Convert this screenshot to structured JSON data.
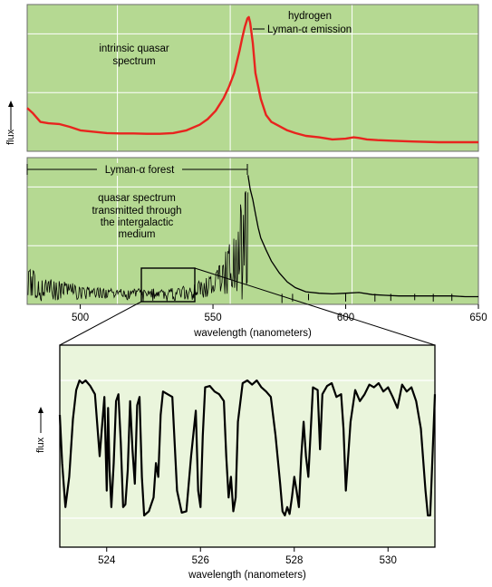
{
  "ylabel": "flux",
  "chart_data": [
    {
      "type": "line",
      "annotations": [
        "intrinsic quasar spectrum",
        "hydrogen",
        "Lyman-α emission"
      ],
      "series": [
        {
          "color": "#e8241e",
          "x": [
            480,
            482,
            485,
            488,
            492,
            496,
            500,
            505,
            510,
            515,
            520,
            525,
            530,
            535,
            540,
            545,
            548,
            551,
            554,
            556,
            558,
            559,
            560,
            561,
            562,
            563,
            563.5,
            564,
            565,
            566,
            568,
            570,
            572,
            574,
            576,
            578,
            581,
            585,
            590,
            595,
            600,
            603,
            605,
            608,
            612,
            618,
            625,
            635,
            645,
            650
          ],
          "y": [
            0.62,
            0.55,
            0.42,
            0.4,
            0.39,
            0.35,
            0.3,
            0.28,
            0.26,
            0.255,
            0.255,
            0.25,
            0.25,
            0.26,
            0.3,
            0.38,
            0.46,
            0.58,
            0.76,
            0.92,
            1.12,
            1.28,
            1.44,
            1.62,
            1.78,
            1.9,
            1.92,
            1.84,
            1.55,
            1.12,
            0.75,
            0.52,
            0.42,
            0.38,
            0.34,
            0.3,
            0.26,
            0.22,
            0.2,
            0.17,
            0.18,
            0.2,
            0.19,
            0.17,
            0.16,
            0.15,
            0.14,
            0.13,
            0.13,
            0.13
          ]
        }
      ],
      "xlim": [
        480,
        650
      ],
      "ylim": [
        0,
        2.1
      ],
      "grid": true
    },
    {
      "type": "line",
      "annotations": [
        "Lyman-α forest",
        "quasar spectrum transmitted through the intergalactic medium"
      ],
      "xlabel": "wavelength (nanometers)",
      "x_ticks": [
        500,
        550,
        600,
        650
      ],
      "series": [
        {
          "color": "#000000",
          "x": [
            563.2,
            564,
            565,
            566,
            567,
            568,
            570,
            572,
            575,
            578,
            581,
            585,
            590,
            595,
            600,
            605,
            610,
            615,
            620,
            625,
            630,
            635,
            640,
            645,
            650
          ],
          "y": [
            1.85,
            1.65,
            1.5,
            1.3,
            1.1,
            0.95,
            0.78,
            0.62,
            0.45,
            0.32,
            0.24,
            0.18,
            0.16,
            0.15,
            0.16,
            0.17,
            0.14,
            0.13,
            0.12,
            0.12,
            0.12,
            0.12,
            0.12,
            0.11,
            0.11
          ]
        }
      ],
      "xlim": [
        480,
        650
      ],
      "ylim": [
        0,
        2.1
      ],
      "grid": true
    },
    {
      "type": "line",
      "xlabel": "wavelength (nanometers)",
      "x_ticks": [
        524,
        526,
        528,
        530
      ],
      "xlim": [
        523,
        531
      ],
      "ylim": [
        0,
        1.1
      ],
      "series": [
        {
          "color": "#000000",
          "x": [
            523,
            523.05,
            523.12,
            523.2,
            523.28,
            523.35,
            523.42,
            523.48,
            523.55,
            523.65,
            523.75,
            523.85,
            523.95,
            524.0,
            524.03,
            524.06,
            524.1,
            524.15,
            524.2,
            524.25,
            524.3,
            524.35,
            524.4,
            524.45,
            524.5,
            524.55,
            524.6,
            524.65,
            524.7,
            524.75,
            524.8,
            524.9,
            525.0,
            525.05,
            525.1,
            525.15,
            525.2,
            525.3,
            525.4,
            525.5,
            525.6,
            525.7,
            525.8,
            525.9,
            525.95,
            526.0,
            526.05,
            526.1,
            526.2,
            526.3,
            526.4,
            526.5,
            526.55,
            526.6,
            526.65,
            526.7,
            526.75,
            526.8,
            526.9,
            527.0,
            527.1,
            527.2,
            527.3,
            527.4,
            527.5,
            527.6,
            527.7,
            527.75,
            527.8,
            527.85,
            527.9,
            527.95,
            528.0,
            528.05,
            528.1,
            528.15,
            528.2,
            528.25,
            528.3,
            528.4,
            528.5,
            528.55,
            528.6,
            528.7,
            528.8,
            528.9,
            529.0,
            529.05,
            529.1,
            529.2,
            529.3,
            529.4,
            529.5,
            529.6,
            529.7,
            529.8,
            529.9,
            530.0,
            530.1,
            530.2,
            530.3,
            530.4,
            530.5,
            530.6,
            530.7,
            530.8,
            530.85,
            530.9,
            531.0
          ],
          "y": [
            0.75,
            0.4,
            0.08,
            0.3,
            0.72,
            0.93,
            1.0,
            0.98,
            1.0,
            0.96,
            0.9,
            0.45,
            0.88,
            0.2,
            0.8,
            0.35,
            0.08,
            0.4,
            0.85,
            0.9,
            0.55,
            0.08,
            0.1,
            0.35,
            0.85,
            0.5,
            0.25,
            0.82,
            0.88,
            0.3,
            0.02,
            0.05,
            0.15,
            0.4,
            0.3,
            0.75,
            0.92,
            0.9,
            0.88,
            0.2,
            0.04,
            0.05,
            0.45,
            0.78,
            0.2,
            0.08,
            0.6,
            0.95,
            0.96,
            0.92,
            0.9,
            0.85,
            0.45,
            0.15,
            0.3,
            0.05,
            0.15,
            0.7,
            0.98,
            1.0,
            0.97,
            1.0,
            0.95,
            0.92,
            0.88,
            0.6,
            0.25,
            0.05,
            0.02,
            0.08,
            0.03,
            0.15,
            0.3,
            0.2,
            0.08,
            0.45,
            0.7,
            0.45,
            0.3,
            0.95,
            0.93,
            0.5,
            0.9,
            0.96,
            0.98,
            0.88,
            0.9,
            0.65,
            0.2,
            0.7,
            0.93,
            0.85,
            0.9,
            0.97,
            0.95,
            0.98,
            0.92,
            0.95,
            0.88,
            0.8,
            0.97,
            0.92,
            0.95,
            0.85,
            0.65,
            0.2,
            0.02,
            0.02,
            0.9
          ]
        }
      ]
    }
  ]
}
